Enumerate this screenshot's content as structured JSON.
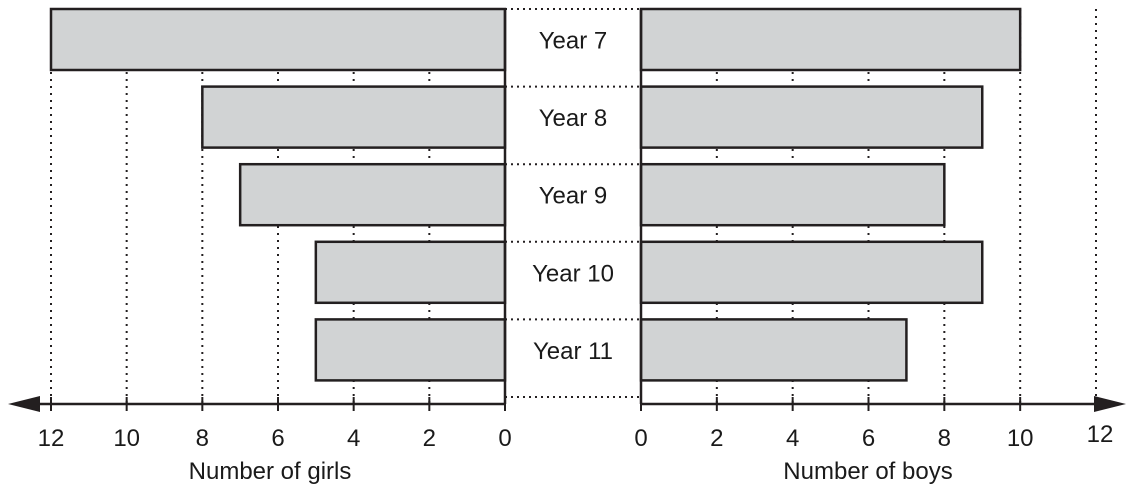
{
  "chart_data": {
    "type": "bar",
    "layout": "back-to-back horizontal bars",
    "categories": [
      "Year 7",
      "Year 8",
      "Year 9",
      "Year 10",
      "Year 11"
    ],
    "series": [
      {
        "name": "Number of girls",
        "side": "left",
        "values": [
          12,
          8,
          7,
          5,
          5
        ]
      },
      {
        "name": "Number of boys",
        "side": "right",
        "values": [
          10,
          9,
          8,
          9,
          7
        ]
      }
    ],
    "left_axis": {
      "label": "Number of girls",
      "range": [
        0,
        12
      ],
      "ticks": [
        "12",
        "10",
        "8",
        "6",
        "4",
        "2",
        "0"
      ],
      "direction": "increasing to the left"
    },
    "right_axis": {
      "label": "Number of boys",
      "range": [
        0,
        12
      ],
      "ticks": [
        "0",
        "2",
        "4",
        "6",
        "8",
        "10",
        "12"
      ],
      "direction": "increasing to the right"
    },
    "grid": "dotted vertical lines at every 2 units",
    "colors": {
      "bar_fill": "#d1d3d4",
      "bar_stroke": "#231f20",
      "axis": "#231f20"
    }
  }
}
